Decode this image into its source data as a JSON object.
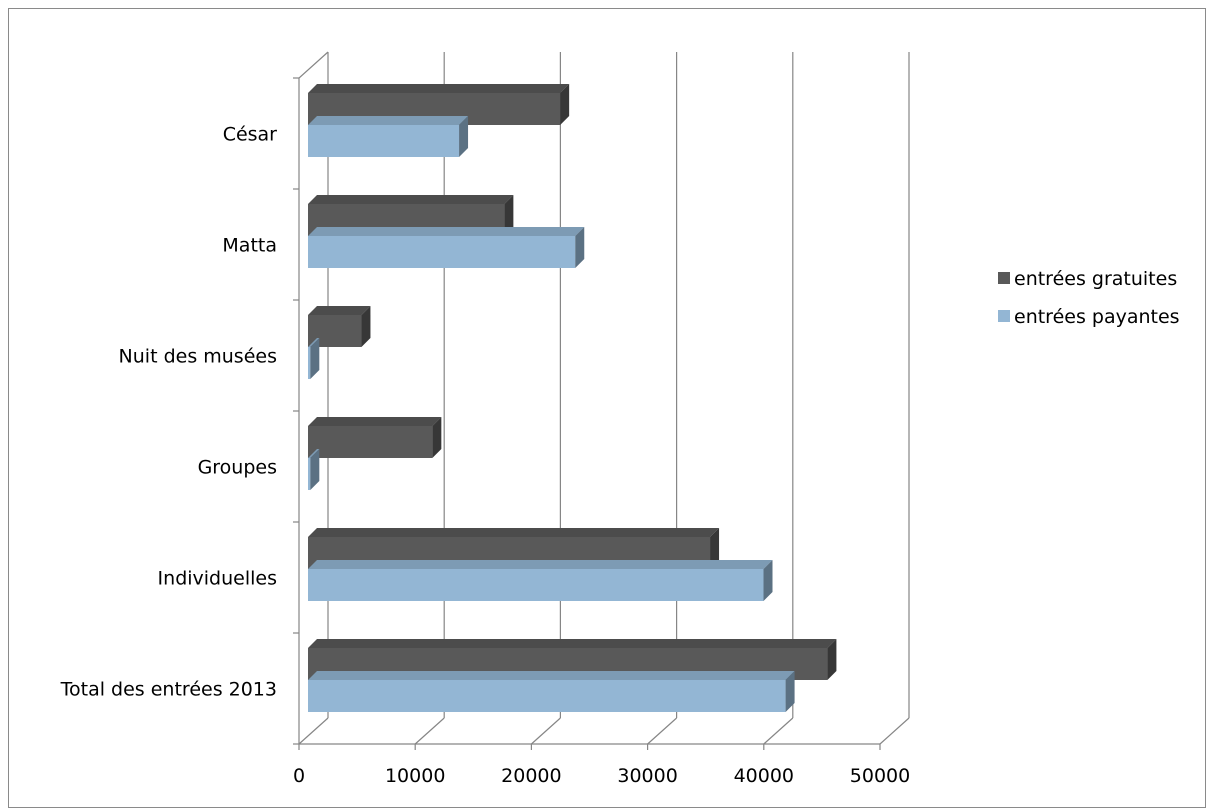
{
  "chart_data": {
    "type": "bar",
    "orientation": "horizontal",
    "style": "3d",
    "title": "",
    "xlabel": "",
    "ylabel": "",
    "categories": [
      "Total des entrées 2013",
      "Individuelles",
      "Groupes",
      "Nuit des musées",
      "Matta",
      "César"
    ],
    "series": [
      {
        "name": "entrées gratuites",
        "color": "#595959",
        "values": [
          44700,
          34600,
          10700,
          4600,
          16900,
          21700
        ]
      },
      {
        "name": "entrées payantes",
        "color": "#93b6d4",
        "values": [
          41100,
          39200,
          200,
          200,
          23000,
          13000
        ]
      }
    ],
    "xlim": [
      0,
      50000
    ],
    "xticks": [
      "0",
      "10000",
      "20000",
      "30000",
      "40000",
      "50000"
    ],
    "grid": true,
    "legend_position": "right"
  }
}
